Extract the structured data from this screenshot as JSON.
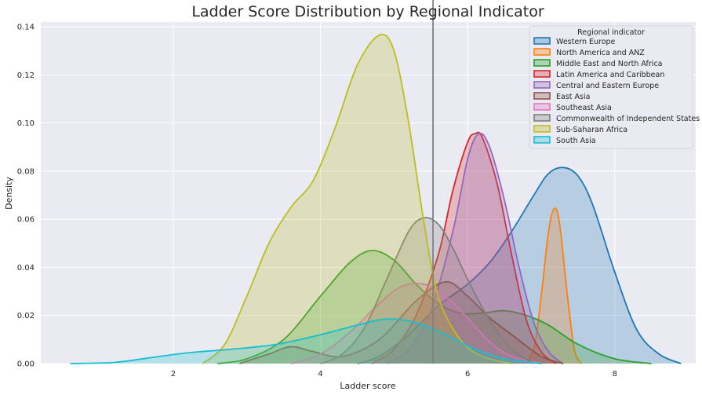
{
  "chart_data": {
    "type": "area",
    "title": "Ladder Score Distribution by Regional Indicator",
    "xlabel": "Ladder score",
    "ylabel": "Density",
    "xlim": [
      0.2,
      9.1
    ],
    "ylim": [
      0,
      0.142
    ],
    "xticks": [
      2,
      4,
      6,
      8
    ],
    "yticks": [
      0.0,
      0.02,
      0.04,
      0.06,
      0.08,
      0.1,
      0.12,
      0.14
    ],
    "ytick_labels": [
      "0.00",
      "0.02",
      "0.04",
      "0.06",
      "0.08",
      "0.10",
      "0.12",
      "0.14"
    ],
    "grid": true,
    "vline_x": 5.53,
    "legend": {
      "title": "Regional indicator",
      "placement": "top-right"
    },
    "series": [
      {
        "name": "Western Europe",
        "color": "#1f77b4",
        "points": [
          [
            4.5,
            0
          ],
          [
            4.8,
            0.003
          ],
          [
            5.2,
            0.012
          ],
          [
            5.6,
            0.024
          ],
          [
            6.0,
            0.033
          ],
          [
            6.3,
            0.042
          ],
          [
            6.6,
            0.055
          ],
          [
            6.9,
            0.07
          ],
          [
            7.1,
            0.079
          ],
          [
            7.3,
            0.0815
          ],
          [
            7.5,
            0.078
          ],
          [
            7.7,
            0.066
          ],
          [
            8.0,
            0.038
          ],
          [
            8.3,
            0.014
          ],
          [
            8.6,
            0.004
          ],
          [
            8.9,
            0
          ]
        ]
      },
      {
        "name": "North America and ANZ",
        "color": "#ff7f0e",
        "points": [
          [
            6.75,
            0
          ],
          [
            6.9,
            0.006
          ],
          [
            7.0,
            0.028
          ],
          [
            7.1,
            0.055
          ],
          [
            7.18,
            0.0645
          ],
          [
            7.25,
            0.058
          ],
          [
            7.35,
            0.03
          ],
          [
            7.45,
            0.006
          ],
          [
            7.55,
            0
          ]
        ]
      },
      {
        "name": "Middle East and North Africa",
        "color": "#2ca02c",
        "points": [
          [
            2.6,
            0
          ],
          [
            3.0,
            0.002
          ],
          [
            3.5,
            0.01
          ],
          [
            4.0,
            0.028
          ],
          [
            4.4,
            0.042
          ],
          [
            4.7,
            0.047
          ],
          [
            5.0,
            0.043
          ],
          [
            5.3,
            0.033
          ],
          [
            5.6,
            0.025
          ],
          [
            5.9,
            0.021
          ],
          [
            6.2,
            0.021
          ],
          [
            6.5,
            0.022
          ],
          [
            6.8,
            0.02
          ],
          [
            7.1,
            0.016
          ],
          [
            7.5,
            0.008
          ],
          [
            8.0,
            0.002
          ],
          [
            8.5,
            0
          ]
        ]
      },
      {
        "name": "Latin America and Caribbean",
        "color": "#d62728",
        "points": [
          [
            4.7,
            0
          ],
          [
            5.0,
            0.006
          ],
          [
            5.3,
            0.02
          ],
          [
            5.6,
            0.045
          ],
          [
            5.8,
            0.072
          ],
          [
            6.0,
            0.092
          ],
          [
            6.1,
            0.0955
          ],
          [
            6.2,
            0.094
          ],
          [
            6.4,
            0.075
          ],
          [
            6.6,
            0.045
          ],
          [
            6.8,
            0.018
          ],
          [
            7.0,
            0.005
          ],
          [
            7.2,
            0
          ]
        ]
      },
      {
        "name": "Central and Eastern Europe",
        "color": "#9467bd",
        "points": [
          [
            4.9,
            0
          ],
          [
            5.2,
            0.006
          ],
          [
            5.5,
            0.022
          ],
          [
            5.8,
            0.055
          ],
          [
            6.0,
            0.085
          ],
          [
            6.15,
            0.0955
          ],
          [
            6.3,
            0.09
          ],
          [
            6.5,
            0.068
          ],
          [
            6.7,
            0.04
          ],
          [
            6.9,
            0.017
          ],
          [
            7.1,
            0.005
          ],
          [
            7.3,
            0
          ]
        ]
      },
      {
        "name": "East Asia",
        "color": "#8c564b",
        "points": [
          [
            2.9,
            0
          ],
          [
            3.3,
            0.004
          ],
          [
            3.6,
            0.007
          ],
          [
            3.9,
            0.005
          ],
          [
            4.3,
            0.003
          ],
          [
            4.8,
            0.01
          ],
          [
            5.3,
            0.026
          ],
          [
            5.7,
            0.034
          ],
          [
            6.0,
            0.028
          ],
          [
            6.3,
            0.019
          ],
          [
            6.6,
            0.012
          ],
          [
            7.0,
            0.003
          ],
          [
            7.3,
            0
          ]
        ]
      },
      {
        "name": "Southeast Asia",
        "color": "#e377c2",
        "points": [
          [
            3.6,
            0
          ],
          [
            4.0,
            0.004
          ],
          [
            4.4,
            0.013
          ],
          [
            4.8,
            0.025
          ],
          [
            5.1,
            0.032
          ],
          [
            5.4,
            0.033
          ],
          [
            5.7,
            0.028
          ],
          [
            6.0,
            0.019
          ],
          [
            6.3,
            0.009
          ],
          [
            6.6,
            0.003
          ],
          [
            7.0,
            0
          ]
        ]
      },
      {
        "name": "Commonwealth of Independent States",
        "color": "#7f7f7f",
        "points": [
          [
            4.0,
            0
          ],
          [
            4.3,
            0.004
          ],
          [
            4.6,
            0.015
          ],
          [
            4.9,
            0.035
          ],
          [
            5.2,
            0.055
          ],
          [
            5.4,
            0.0605
          ],
          [
            5.6,
            0.058
          ],
          [
            5.8,
            0.048
          ],
          [
            6.0,
            0.035
          ],
          [
            6.3,
            0.018
          ],
          [
            6.6,
            0.006
          ],
          [
            6.9,
            0
          ]
        ]
      },
      {
        "name": "Sub-Saharan Africa",
        "color": "#bcbd22",
        "points": [
          [
            2.4,
            0
          ],
          [
            2.7,
            0.008
          ],
          [
            3.0,
            0.028
          ],
          [
            3.3,
            0.05
          ],
          [
            3.6,
            0.065
          ],
          [
            3.9,
            0.076
          ],
          [
            4.2,
            0.098
          ],
          [
            4.5,
            0.124
          ],
          [
            4.8,
            0.1365
          ],
          [
            5.0,
            0.13
          ],
          [
            5.2,
            0.1
          ],
          [
            5.4,
            0.06
          ],
          [
            5.6,
            0.028
          ],
          [
            5.9,
            0.01
          ],
          [
            6.2,
            0.003
          ],
          [
            6.6,
            0
          ]
        ]
      },
      {
        "name": "South Asia",
        "color": "#17becf",
        "points": [
          [
            0.6,
            0
          ],
          [
            1.2,
            0.0005
          ],
          [
            1.7,
            0.0025
          ],
          [
            2.2,
            0.0045
          ],
          [
            2.8,
            0.006
          ],
          [
            3.4,
            0.008
          ],
          [
            4.0,
            0.012
          ],
          [
            4.5,
            0.016
          ],
          [
            4.9,
            0.0185
          ],
          [
            5.3,
            0.017
          ],
          [
            5.7,
            0.012
          ],
          [
            6.1,
            0.006
          ],
          [
            6.5,
            0.002
          ],
          [
            7.0,
            0
          ]
        ]
      }
    ]
  }
}
